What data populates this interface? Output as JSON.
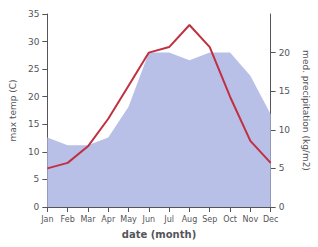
{
  "chart_data": {
    "type": "line",
    "xlabel": "date (month)",
    "ylabel": "max temp (C)",
    "y2label": "med. precipitation (kg/m2)",
    "categories": [
      "Jan",
      "Feb",
      "Mar",
      "Apr",
      "May",
      "Jun",
      "Jul",
      "Aug",
      "Sep",
      "Oct",
      "Nov",
      "Dec"
    ],
    "series": [
      {
        "type": "area",
        "axis": "y2",
        "color": "#b8c0e8",
        "values": [
          9,
          8,
          8,
          9,
          13,
          20,
          20,
          19,
          20,
          20,
          17,
          12
        ]
      },
      {
        "type": "line",
        "color": "#c03040",
        "values": [
          7,
          8,
          11,
          16,
          22,
          28,
          29,
          33,
          29,
          20,
          12,
          8
        ]
      }
    ],
    "ylim": [
      0,
      35
    ],
    "yticks": [
      0,
      5,
      10,
      15,
      20,
      25,
      30,
      35
    ],
    "y2lim": [
      0,
      25
    ],
    "y2ticks": [
      0,
      5,
      10,
      15,
      20
    ],
    "grid": false
  }
}
